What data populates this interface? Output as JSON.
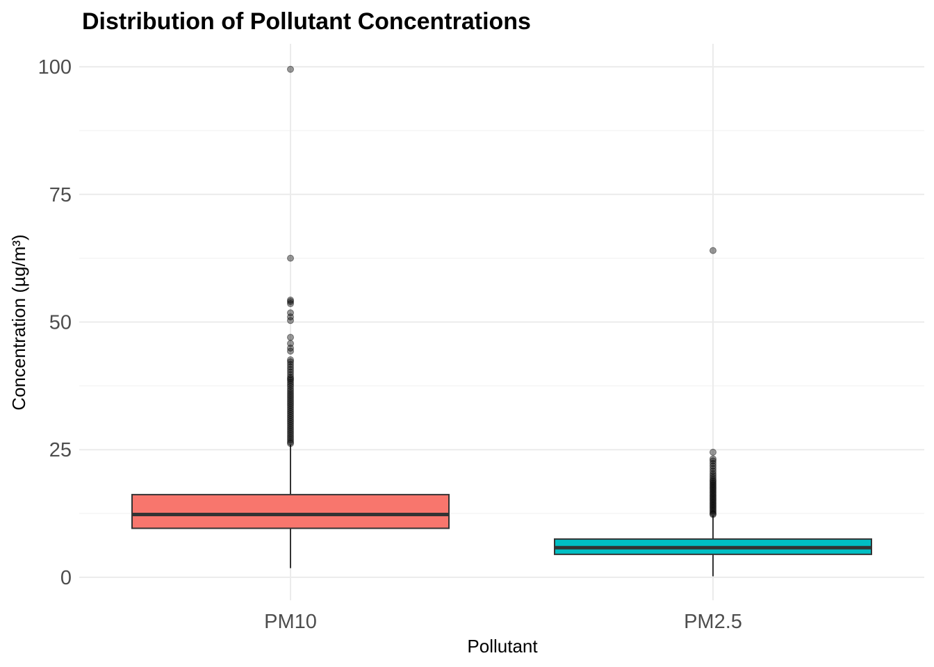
{
  "chart_data": {
    "type": "boxplot",
    "title": "Distribution of Pollutant Concentrations",
    "xlabel": "Pollutant",
    "ylabel": "Concentration (µg/m³)",
    "ylim": [
      -4.5,
      104.5
    ],
    "yticks": [
      0,
      25,
      50,
      75,
      100
    ],
    "yticks_minor": [
      12.5,
      37.5,
      62.5,
      87.5
    ],
    "grid": true,
    "legend": "none",
    "categories": [
      "PM10",
      "PM2.5"
    ],
    "boxes": [
      {
        "category": "PM10",
        "color": "#F8766D",
        "whisker_low": 1.8,
        "q1": 9.6,
        "median": 12.3,
        "q3": 16.2,
        "whisker_high": 26.0,
        "outliers": [
          99.5,
          62.5,
          54.3,
          54.0,
          53.6,
          51.8,
          51.0,
          50.3,
          47.0,
          45.8,
          44.9,
          44.3,
          42.6,
          42.2,
          41.7,
          41.2,
          40.7,
          40.2,
          39.7,
          39.2,
          38.9,
          38.6,
          38.2,
          37.8,
          37.4,
          36.9,
          36.5,
          36.1,
          35.7,
          35.3,
          34.9,
          34.5,
          34.1,
          33.7,
          33.3,
          32.9,
          32.5,
          32.1,
          31.7,
          31.3,
          30.9,
          30.5,
          30.1,
          29.7,
          29.3,
          28.9,
          28.5,
          28.1,
          27.7,
          27.3,
          26.9,
          26.5,
          26.2
        ]
      },
      {
        "category": "PM2.5",
        "color": "#00BFC4",
        "whisker_low": 0.2,
        "q1": 4.5,
        "median": 5.8,
        "q3": 7.5,
        "whisker_high": 12.1,
        "outliers": [
          64.0,
          24.5,
          23.2,
          22.8,
          22.3,
          21.8,
          21.3,
          20.8,
          20.3,
          19.9,
          19.5,
          19.1,
          18.8,
          18.5,
          18.2,
          17.9,
          17.6,
          17.3,
          17.0,
          16.7,
          16.4,
          16.1,
          15.8,
          15.5,
          15.2,
          14.9,
          14.6,
          14.3,
          14.0,
          13.7,
          13.4,
          13.1,
          12.8,
          12.5,
          12.3
        ]
      }
    ]
  }
}
